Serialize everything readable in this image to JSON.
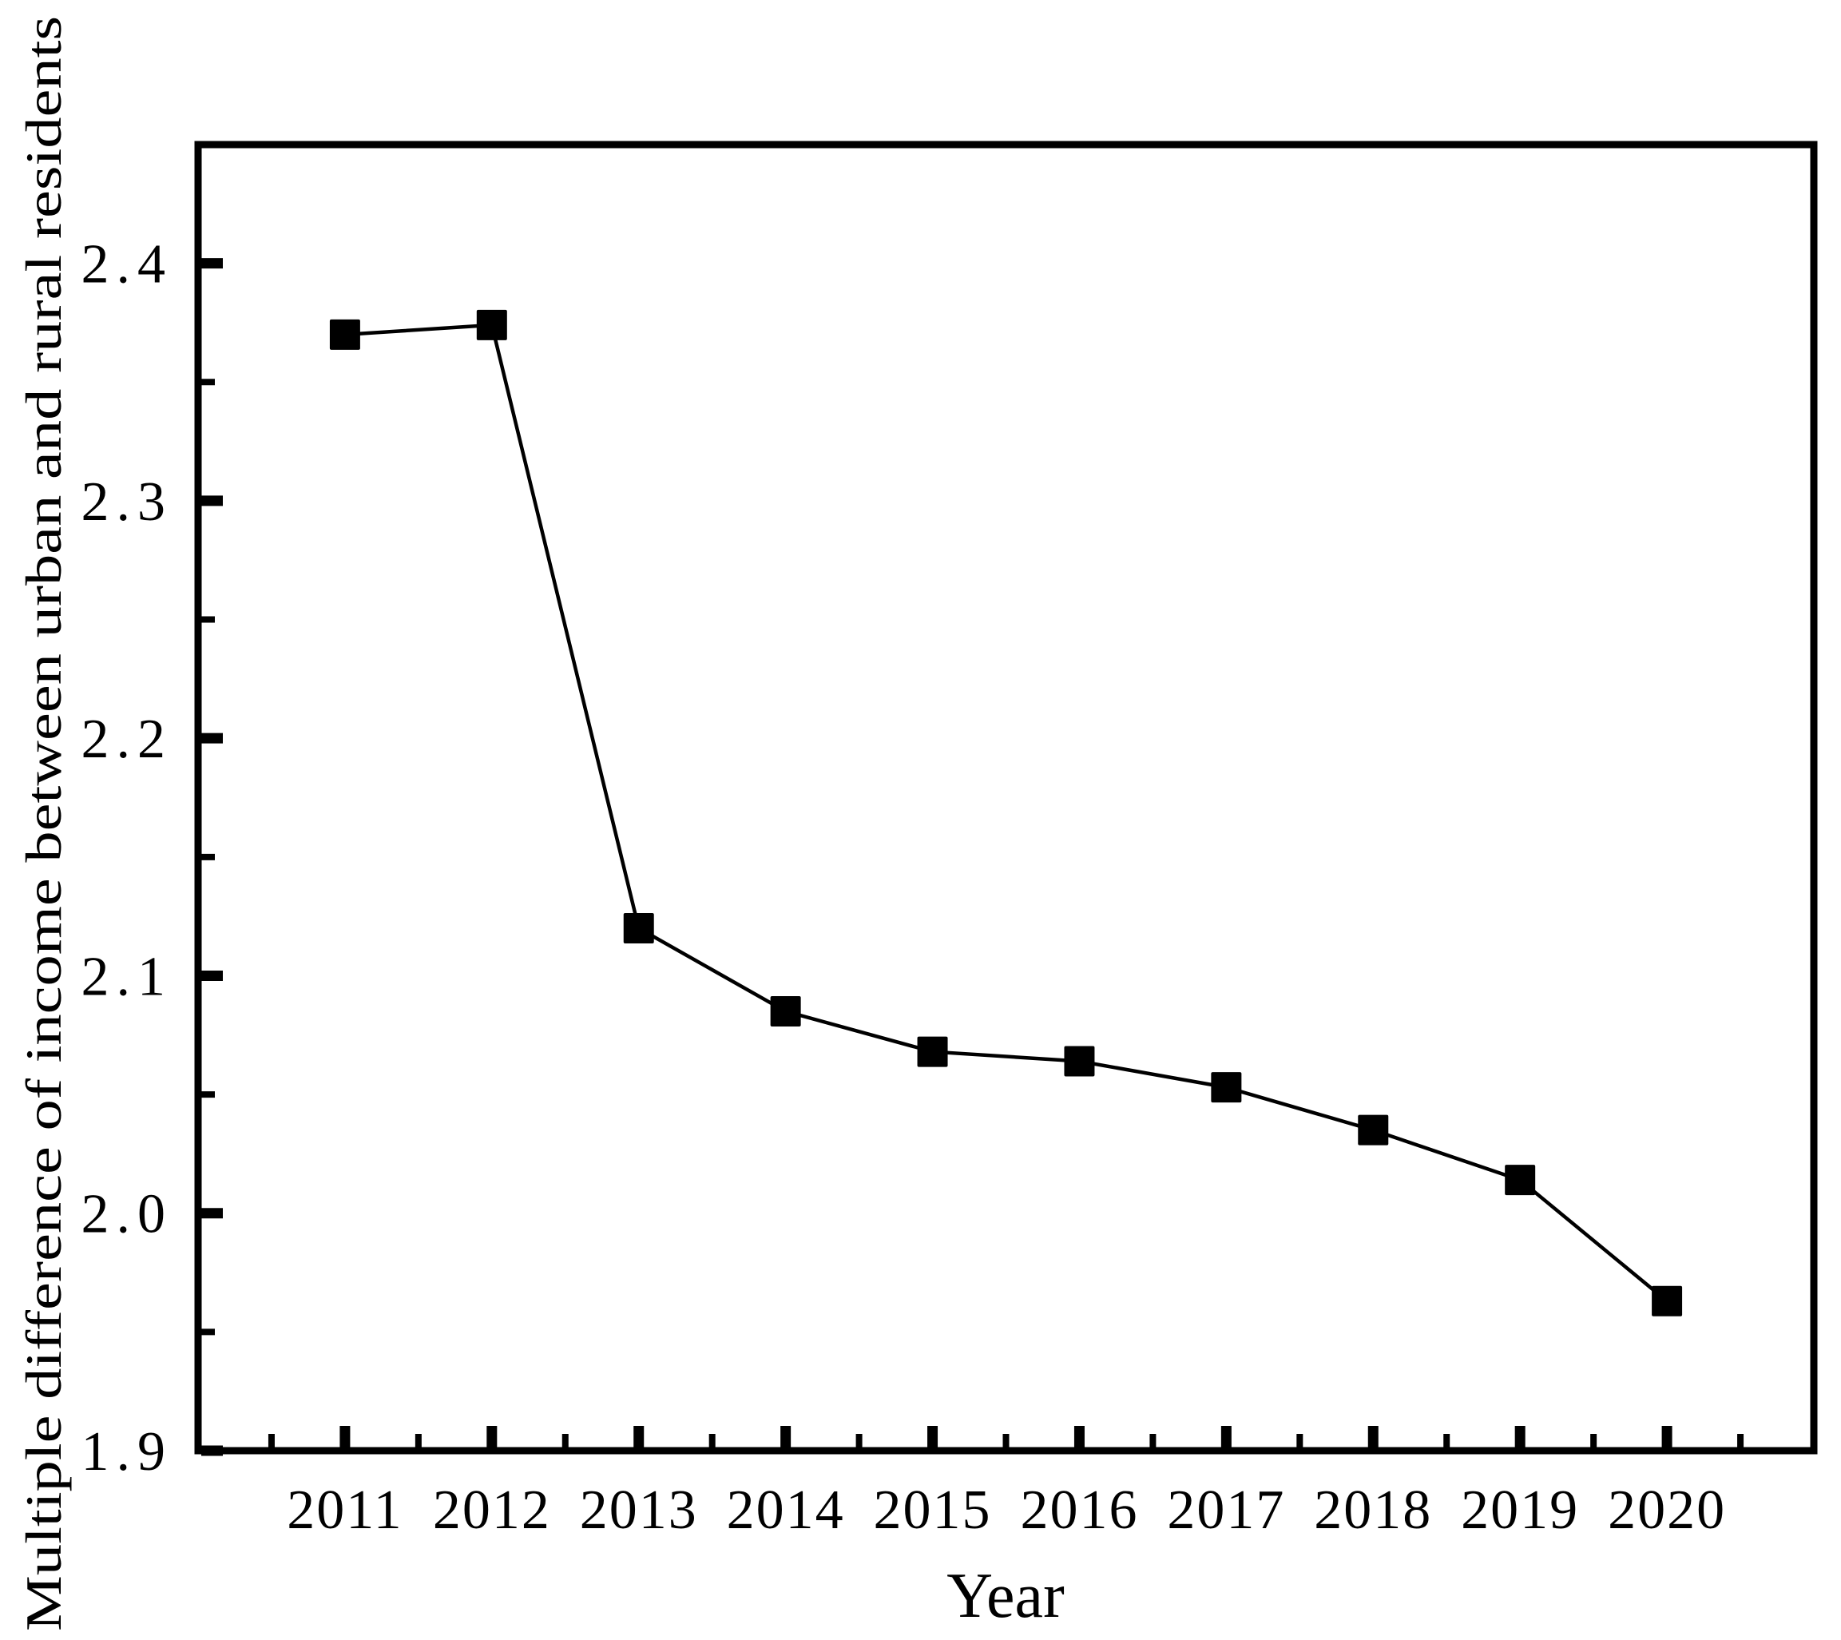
{
  "figure": {
    "background_color": "#ffffff",
    "foreground_color": "#000000"
  },
  "chart_data": {
    "type": "line",
    "title": "",
    "xlabel": "Year",
    "ylabel": "Multiple difference of income between urban and rural residents",
    "x": [
      2011,
      2012,
      2013,
      2014,
      2015,
      2016,
      2017,
      2018,
      2019,
      2020
    ],
    "values": [
      2.37,
      2.374,
      2.12,
      2.085,
      2.068,
      2.064,
      2.053,
      2.035,
      2.014,
      1.963
    ],
    "xlim": [
      2010,
      2021
    ],
    "ylim": [
      1.9,
      2.45
    ],
    "xticks": [
      2011,
      2012,
      2013,
      2014,
      2015,
      2016,
      2017,
      2018,
      2019,
      2020
    ],
    "xtick_labels": [
      "2011",
      "2012",
      "2013",
      "2014",
      "2015",
      "2016",
      "2017",
      "2018",
      "2019",
      "2020"
    ],
    "yticks": [
      1.9,
      2.0,
      2.1,
      2.2,
      2.3,
      2.4
    ],
    "ytick_labels": [
      "1.9",
      "2.0",
      "2.1",
      "2.2",
      "2.3",
      "2.4"
    ],
    "x_minor_ticks": [
      2010.5,
      2011.5,
      2012.5,
      2013.5,
      2014.5,
      2015.5,
      2016.5,
      2017.5,
      2018.5,
      2019.5,
      2020.5
    ],
    "y_minor_ticks": [
      1.95,
      2.05,
      2.15,
      2.25,
      2.35
    ],
    "grid": false,
    "legend": "none",
    "marker": "filled-square",
    "line_color": "#000000",
    "marker_color": "#000000"
  }
}
